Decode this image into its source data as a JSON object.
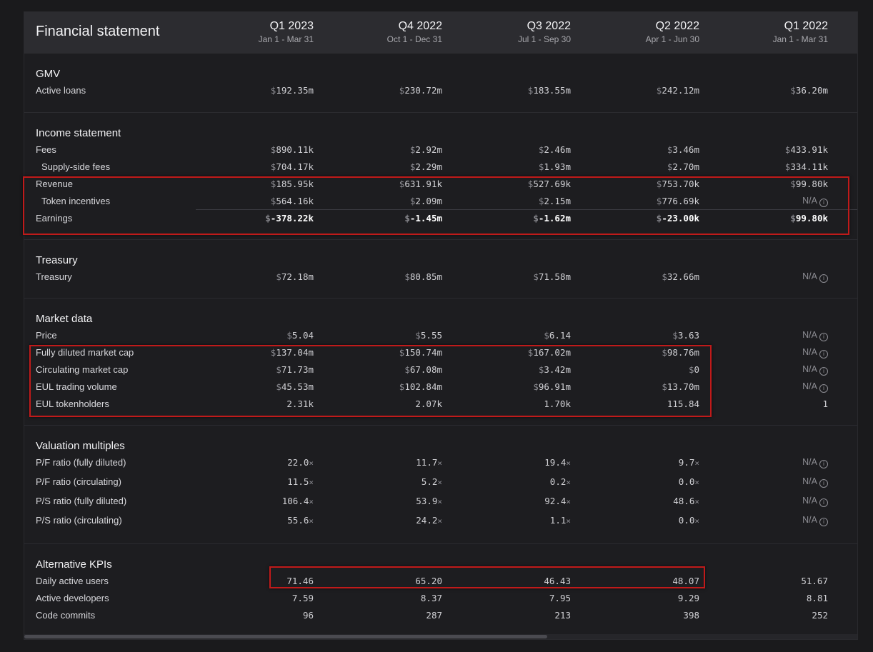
{
  "header": {
    "title": "Financial statement",
    "columns": [
      {
        "quarter": "Q1 2023",
        "dates": "Jan 1 - Mar 31"
      },
      {
        "quarter": "Q4 2022",
        "dates": "Oct 1 - Dec 31"
      },
      {
        "quarter": "Q3 2022",
        "dates": "Jul 1 - Sep 30"
      },
      {
        "quarter": "Q2 2022",
        "dates": "Apr 1 - Jun 30"
      },
      {
        "quarter": "Q1 2022",
        "dates": "Jan 1 - Mar 31"
      }
    ]
  },
  "sections": {
    "gmv": {
      "title": "GMV",
      "rows": [
        {
          "label": "Active loans",
          "values": [
            "192.35m",
            "230.72m",
            "183.55m",
            "242.12m",
            "36.20m"
          ]
        }
      ]
    },
    "income": {
      "title": "Income statement",
      "rows": [
        {
          "label": "Fees",
          "values": [
            "890.11k",
            "2.92m",
            "2.46m",
            "3.46m",
            "433.91k"
          ]
        },
        {
          "label": "Supply-side fees",
          "values": [
            "704.17k",
            "2.29m",
            "1.93m",
            "2.70m",
            "334.11k"
          ]
        },
        {
          "label": "Revenue",
          "values": [
            "185.95k",
            "631.91k",
            "527.69k",
            "753.70k",
            "99.80k"
          ]
        },
        {
          "label": "Token incentives",
          "values": [
            "564.16k",
            "2.09m",
            "2.15m",
            "776.69k",
            "N/A"
          ]
        },
        {
          "label": "Earnings",
          "values": [
            "-378.22k",
            "-1.45m",
            "-1.62m",
            "-23.00k",
            "99.80k"
          ]
        }
      ]
    },
    "treasury": {
      "title": "Treasury",
      "rows": [
        {
          "label": "Treasury",
          "values": [
            "72.18m",
            "80.85m",
            "71.58m",
            "32.66m",
            "N/A"
          ]
        }
      ]
    },
    "market": {
      "title": "Market data",
      "rows": [
        {
          "label": "Price",
          "values": [
            "5.04",
            "5.55",
            "6.14",
            "3.63",
            "N/A"
          ]
        },
        {
          "label": "Fully diluted market cap",
          "values": [
            "137.04m",
            "150.74m",
            "167.02m",
            "98.76m",
            "N/A"
          ]
        },
        {
          "label": "Circulating market cap",
          "values": [
            "71.73m",
            "67.08m",
            "3.42m",
            "0",
            "N/A"
          ]
        },
        {
          "label": "EUL trading volume",
          "values": [
            "45.53m",
            "102.84m",
            "96.91m",
            "13.70m",
            "N/A"
          ]
        },
        {
          "label": "EUL tokenholders",
          "values": [
            "2.31k",
            "2.07k",
            "1.70k",
            "115.84",
            "1"
          ]
        }
      ]
    },
    "valuation": {
      "title": "Valuation multiples",
      "rows": [
        {
          "label": "P/F ratio (fully diluted)",
          "values": [
            "22.0",
            "11.7",
            "19.4",
            "9.7",
            "N/A"
          ]
        },
        {
          "label": "P/F ratio (circulating)",
          "values": [
            "11.5",
            "5.2",
            "0.2",
            "0.0",
            "N/A"
          ]
        },
        {
          "label": "P/S ratio (fully diluted)",
          "values": [
            "106.4",
            "53.9",
            "92.4",
            "48.6",
            "N/A"
          ]
        },
        {
          "label": "P/S ratio (circulating)",
          "values": [
            "55.6",
            "24.2",
            "1.1",
            "0.0",
            "N/A"
          ]
        }
      ]
    },
    "kpis": {
      "title": "Alternative KPIs",
      "rows": [
        {
          "label": "Daily active users",
          "values": [
            "71.46",
            "65.20",
            "46.43",
            "48.07",
            "51.67"
          ]
        },
        {
          "label": "Active developers",
          "values": [
            "7.59",
            "8.37",
            "7.95",
            "9.29",
            "8.81"
          ]
        },
        {
          "label": "Code commits",
          "values": [
            "96",
            "287",
            "213",
            "398",
            "252"
          ]
        }
      ]
    }
  },
  "symbols": {
    "currency": "$",
    "multiple": "×",
    "info": "i"
  },
  "colors": {
    "highlight": "#c01a1a",
    "header_bg": "#2c2c30",
    "panel_bg": "#1d1d20"
  }
}
